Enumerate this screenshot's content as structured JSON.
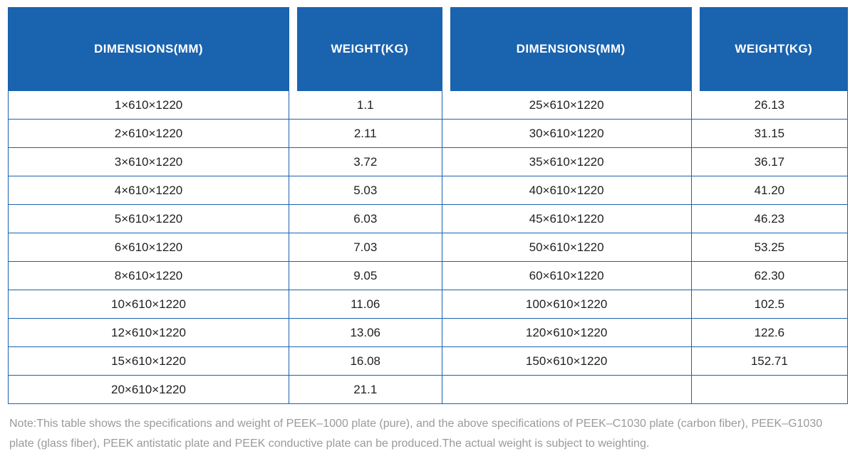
{
  "colors": {
    "header_bg": "#1a63ae",
    "border": "#1a63ae",
    "header_text": "#ffffff",
    "cell_text": "#1f1f1f",
    "note_text": "#9a9a9a"
  },
  "table": {
    "headers": [
      "DIMENSIONS(MM)",
      "WEIGHT(KG)",
      "DIMENSIONS(MM)",
      "WEIGHT(KG)"
    ],
    "rows": [
      [
        "1×610×1220",
        "1.1",
        "25×610×1220",
        "26.13"
      ],
      [
        "2×610×1220",
        "2.11",
        "30×610×1220",
        "31.15"
      ],
      [
        "3×610×1220",
        "3.72",
        "35×610×1220",
        "36.17"
      ],
      [
        "4×610×1220",
        "5.03",
        "40×610×1220",
        "41.20"
      ],
      [
        "5×610×1220",
        "6.03",
        "45×610×1220",
        "46.23"
      ],
      [
        "6×610×1220",
        "7.03",
        "50×610×1220",
        "53.25"
      ],
      [
        "8×610×1220",
        "9.05",
        "60×610×1220",
        "62.30"
      ],
      [
        "10×610×1220",
        "11.06",
        "100×610×1220",
        "102.5"
      ],
      [
        "12×610×1220",
        "13.06",
        "120×610×1220",
        "122.6"
      ],
      [
        "15×610×1220",
        "16.08",
        "150×610×1220",
        "152.71"
      ],
      [
        "20×610×1220",
        "21.1",
        "",
        ""
      ]
    ]
  },
  "note": "Note:This table shows the specifications and weight of PEEK–1000 plate (pure), and the above specifications of PEEK–C1030 plate (carbon fiber), PEEK–G1030 plate (glass fiber), PEEK antistatic plate and PEEK conductive plate can be produced.The actual weight is subject to weighting."
}
